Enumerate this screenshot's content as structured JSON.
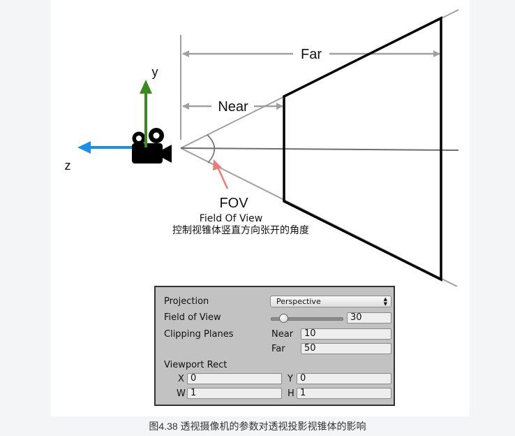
{
  "diagram": {
    "axis_y_label": "y",
    "axis_z_label": "z",
    "near_label": "Near",
    "far_label": "Far",
    "fov_label": "FOV",
    "fov_subtitle": "Field Of View",
    "fov_description": "控制视锥体竖直方向张开的角度",
    "colors": {
      "y_axis": "#3a8a1e",
      "z_axis": "#1d8fe8",
      "fov_arrow": "#f07a78",
      "frustum": "#000000",
      "guide_lines": "#a0a0a0"
    },
    "icons": [
      "camera-icon"
    ]
  },
  "inspector": {
    "projection_label": "Projection",
    "projection_value": "Perspective",
    "fov_label": "Field of View",
    "fov_value": "30",
    "clipping_label": "Clipping Planes",
    "near_label": "Near",
    "near_value": "10",
    "far_label": "Far",
    "far_value": "50",
    "viewport_label": "Viewport Rect",
    "x_label": "X",
    "x_value": "0",
    "y_label": "Y",
    "y_value": "0",
    "w_label": "W",
    "w_value": "1",
    "h_label": "H",
    "h_value": "1",
    "dropdown_icon": "chevron-updown-icon"
  },
  "caption": "图4.38 透视摄像机的参数对透视投影视锥体的影响"
}
